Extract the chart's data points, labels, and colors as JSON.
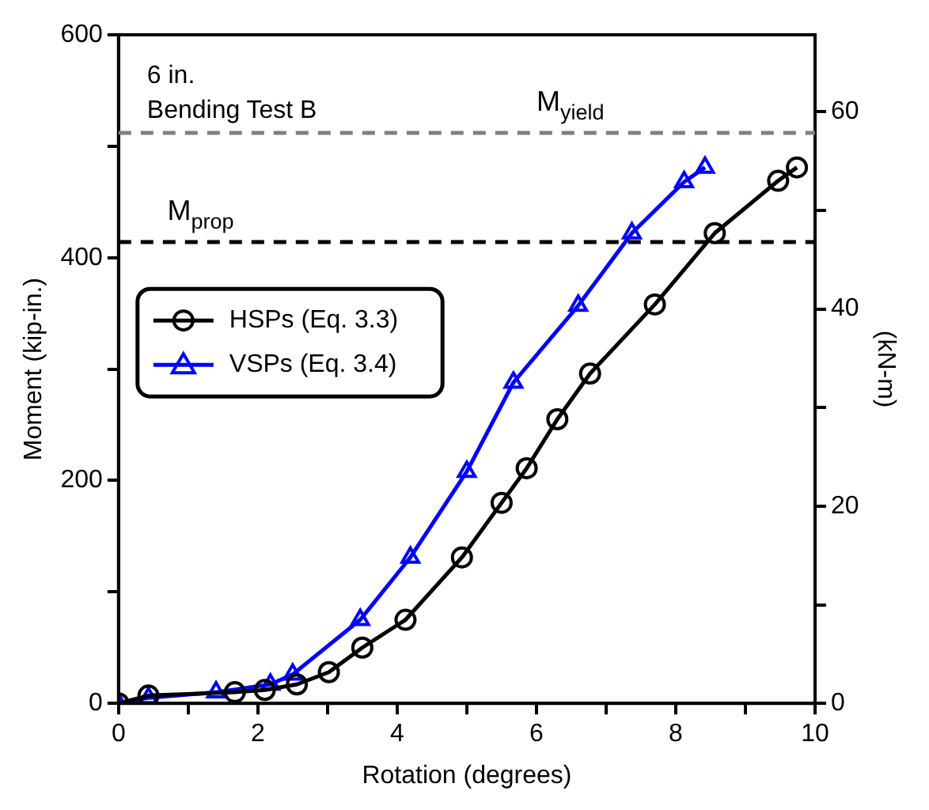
{
  "chart_data": {
    "type": "line",
    "xlabel": "Rotation (degrees)",
    "ylabel": "Moment (kip-in.)",
    "y2label": "(kN-m)",
    "xlim": [
      0,
      10
    ],
    "xticks": [
      0,
      {
        "value": 1,
        "label": null
      },
      2,
      {
        "value": 3,
        "label": null
      },
      4,
      {
        "value": 5,
        "label": null
      },
      6,
      {
        "value": 7,
        "label": null
      },
      8,
      {
        "value": 9,
        "label": null
      },
      10
    ],
    "ylim": [
      0,
      600
    ],
    "yticks": [
      0,
      {
        "value": 100,
        "label": null
      },
      200,
      {
        "value": 300,
        "label": null
      },
      400,
      {
        "value": 500,
        "label": null
      },
      600
    ],
    "y2lim": [
      0,
      67.8
    ],
    "y2ticks": [
      0,
      {
        "value": 10,
        "label": null
      },
      20,
      {
        "value": 30,
        "label": null
      },
      40,
      {
        "value": 50,
        "label": null
      },
      60
    ],
    "annotations": [
      "6 in.",
      "Bending Test B"
    ],
    "ref_lines": [
      {
        "axis": "y",
        "value": 512,
        "label": "M$_{yield}$",
        "color": "#808080",
        "line_style": "dashed"
      },
      {
        "axis": "y",
        "value": 414,
        "label": "M$_{prop}$",
        "color": "#000000",
        "line_style": "dashed"
      }
    ],
    "legend": "left",
    "grid": false,
    "line_style": "solid",
    "series": [
      {
        "name": "HSPs (Eq. 3.3)",
        "color": "#000000",
        "marker": "circle",
        "x": [
          0,
          0.43,
          1.67,
          2.1,
          2.56,
          3.02,
          3.5,
          4.12,
          4.93,
          5.5,
          5.86,
          6.3,
          6.77,
          7.7,
          8.56,
          9.47,
          9.74
        ],
        "values": [
          0,
          7,
          10,
          12,
          17,
          28,
          50,
          75,
          131,
          180,
          211,
          255,
          296,
          358,
          422,
          469,
          481
        ]
      },
      {
        "name": "VSPs (Eq. 3.4)",
        "color": "#0000ff",
        "marker": "triangle",
        "x": [
          0,
          0.43,
          1.4,
          2.18,
          2.5,
          3.47,
          4.19,
          5.0,
          5.67,
          6.6,
          7.37,
          8.12,
          8.42
        ],
        "values": [
          0,
          5,
          10,
          17,
          26,
          75,
          131,
          208,
          288,
          357,
          422,
          468,
          481
        ]
      }
    ]
  }
}
